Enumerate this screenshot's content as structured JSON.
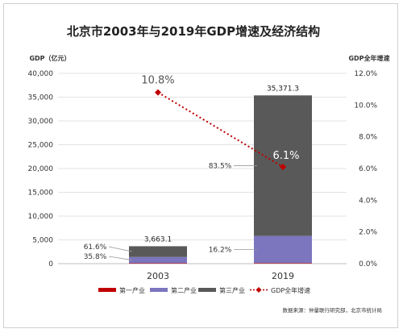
{
  "chart_data": {
    "type": "bar+line",
    "title": "北京市2003年与2019年GDP增速及经济结构",
    "left_axis_label": "GDP（亿元）",
    "right_axis_label": "GDP全年增速",
    "categories": [
      "2003",
      "2019"
    ],
    "left_ticks": [
      "0",
      "5,000",
      "10,000",
      "15,000",
      "20,000",
      "25,000",
      "30,000",
      "35,000",
      "40,000"
    ],
    "right_ticks": [
      "0.0%",
      "2.0%",
      "4.0%",
      "6.0%",
      "8.0%",
      "10.0%",
      "12.0%"
    ],
    "ylim_left": [
      0,
      40000
    ],
    "ylim_right": [
      0,
      12
    ],
    "series": [
      {
        "name": "第一产业",
        "color": "#c00000",
        "kind": "bar",
        "values": [
          95,
          114
        ],
        "labels": [
          "",
          ""
        ]
      },
      {
        "name": "第二产业",
        "color": "#7b76bd",
        "kind": "bar",
        "values": [
          1311,
          5715
        ],
        "labels": [
          "35.8%",
          "16.2%"
        ]
      },
      {
        "name": "第三产业",
        "color": "#595959",
        "kind": "bar",
        "values": [
          2257,
          29542
        ],
        "labels": [
          "61.6%",
          "83.5%"
        ]
      },
      {
        "name": "GDP全年增速",
        "color": "#c00000",
        "kind": "line",
        "axis": "right",
        "values": [
          10.8,
          6.1
        ],
        "labels": [
          "10.8%",
          "6.1%"
        ]
      }
    ],
    "totals": [
      "3,663.1",
      "35,371.3"
    ]
  },
  "source": "数据来源：仲量联行研究部，北京市统计局"
}
